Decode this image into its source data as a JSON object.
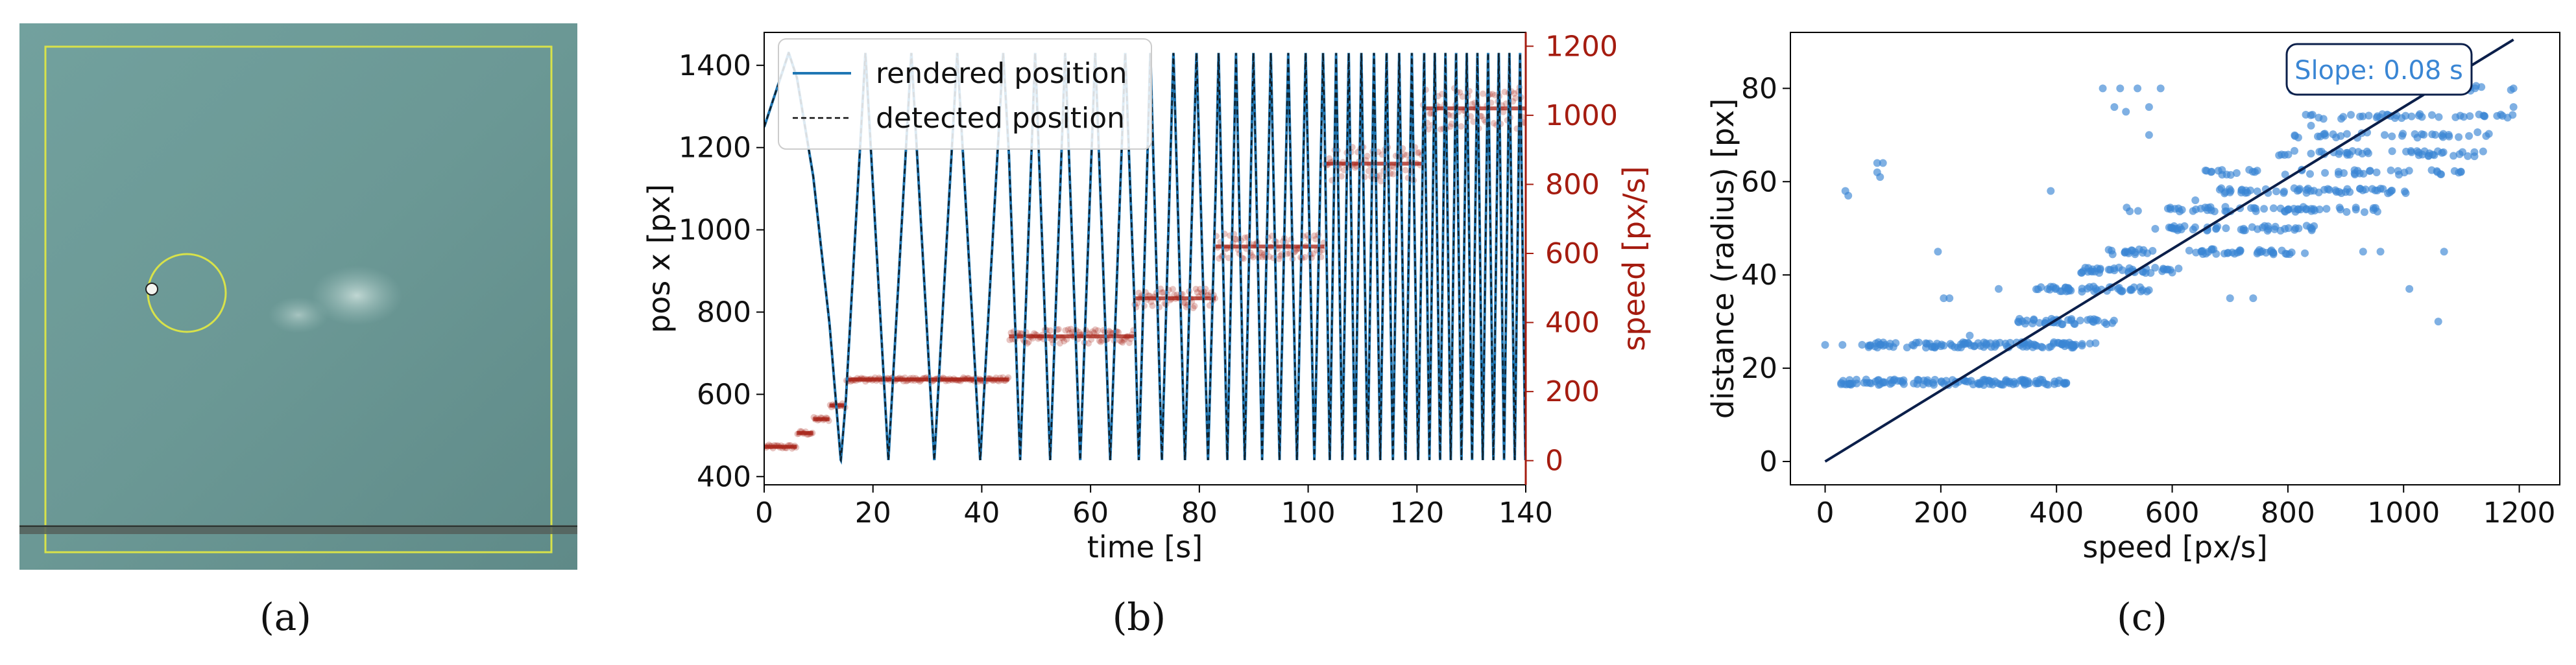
{
  "captions": {
    "a": "(a)",
    "b": "(b)",
    "c": "(c)"
  },
  "colors": {
    "frame_yellow": "#d8e24a",
    "water_bg": "#6d9a97",
    "rendered": "#1f77b4",
    "detected": "#111111",
    "speed": "#a51c10",
    "scatter": "#3a86d4",
    "fit": "#0b1f4a"
  },
  "chart_data": [
    {
      "type": "image",
      "description_label": "(a)",
      "elements": [
        "camera-frame",
        "tracking-circle",
        "marker",
        "ruler"
      ]
    },
    {
      "type": "line",
      "xlabel": "time [s]",
      "ylabel": "pos x [px]",
      "y2label": "speed [px/s]",
      "xlim": [
        0,
        140
      ],
      "ylim": [
        380,
        1480
      ],
      "y2lim": [
        -70,
        1240
      ],
      "xticks": [
        0,
        20,
        40,
        60,
        80,
        100,
        120,
        140
      ],
      "yticks": [
        400,
        600,
        800,
        1000,
        1200,
        1400
      ],
      "y2ticks": [
        0,
        200,
        400,
        600,
        800,
        1000,
        1200
      ],
      "legend": {
        "location": "top-left",
        "entries": [
          "rendered position",
          "detected position"
        ]
      },
      "position_min": 440,
      "position_max": 1430,
      "position_start": 1250,
      "speed_steps": [
        {
          "t0": 0,
          "t1": 6,
          "speed": 40
        },
        {
          "t0": 6,
          "t1": 9,
          "speed": 80
        },
        {
          "t0": 9,
          "t1": 12,
          "speed": 120
        },
        {
          "t0": 12,
          "t1": 15,
          "speed": 160
        },
        {
          "t0": 15,
          "t1": 45,
          "speed": 235
        },
        {
          "t0": 45,
          "t1": 68,
          "speed": 360
        },
        {
          "t0": 68,
          "t1": 83,
          "speed": 470
        },
        {
          "t0": 83,
          "t1": 103,
          "speed": 620
        },
        {
          "t0": 103,
          "t1": 121,
          "speed": 860
        },
        {
          "t0": 121,
          "t1": 140,
          "speed": 1020
        }
      ],
      "series": [
        {
          "name": "rendered position",
          "style": "solid"
        },
        {
          "name": "detected position",
          "style": "dashed"
        },
        {
          "name": "",
          "style": "scatter",
          "axis": "right"
        }
      ]
    },
    {
      "type": "scatter",
      "xlabel": "speed [px/s]",
      "ylabel": "distance (radius) [px]",
      "xlim": [
        -60,
        1270
      ],
      "ylim": [
        -5,
        92
      ],
      "xticks": [
        0,
        200,
        400,
        600,
        800,
        1000,
        1200
      ],
      "yticks": [
        0,
        20,
        40,
        60,
        80
      ],
      "annotation": "Slope: 0.08 s",
      "fit": {
        "slope": 0.076,
        "intercept": 0,
        "x0": 0,
        "x1": 1190
      },
      "clusters": [
        {
          "y": 17,
          "x0": 20,
          "x1": 420,
          "n": 120
        },
        {
          "y": 25,
          "x0": 60,
          "x1": 470,
          "n": 110
        },
        {
          "y": 30,
          "x0": 330,
          "x1": 500,
          "n": 40
        },
        {
          "y": 37,
          "x0": 360,
          "x1": 560,
          "n": 45
        },
        {
          "y": 41,
          "x0": 440,
          "x1": 620,
          "n": 40
        },
        {
          "y": 45,
          "x0": 480,
          "x1": 830,
          "n": 55
        },
        {
          "y": 50,
          "x0": 570,
          "x1": 850,
          "n": 45
        },
        {
          "y": 54,
          "x0": 520,
          "x1": 960,
          "n": 60
        },
        {
          "y": 58,
          "x0": 680,
          "x1": 1010,
          "n": 55
        },
        {
          "y": 62,
          "x0": 640,
          "x1": 1100,
          "n": 45
        },
        {
          "y": 66,
          "x0": 760,
          "x1": 1140,
          "n": 45
        },
        {
          "y": 70,
          "x0": 800,
          "x1": 1150,
          "n": 35
        },
        {
          "y": 74,
          "x0": 820,
          "x1": 1190,
          "n": 40
        },
        {
          "y": 80,
          "x0": 780,
          "x1": 1190,
          "n": 40
        }
      ],
      "outliers": [
        [
          0,
          25
        ],
        [
          30,
          25
        ],
        [
          35,
          58
        ],
        [
          40,
          57
        ],
        [
          90,
          64
        ],
        [
          90,
          62
        ],
        [
          100,
          64
        ],
        [
          95,
          61
        ],
        [
          195,
          45
        ],
        [
          215,
          35
        ],
        [
          205,
          35
        ],
        [
          250,
          27
        ],
        [
          300,
          37
        ],
        [
          390,
          58
        ],
        [
          480,
          80
        ],
        [
          510,
          80
        ],
        [
          540,
          80
        ],
        [
          580,
          80
        ],
        [
          500,
          76
        ],
        [
          520,
          75
        ],
        [
          560,
          76
        ],
        [
          560,
          70
        ],
        [
          640,
          56
        ],
        [
          700,
          35
        ],
        [
          740,
          35
        ],
        [
          840,
          72
        ],
        [
          930,
          45
        ],
        [
          960,
          45
        ],
        [
          1010,
          37
        ],
        [
          1070,
          45
        ],
        [
          1060,
          30
        ],
        [
          1140,
          74
        ],
        [
          1190,
          76
        ],
        [
          1190,
          80
        ]
      ]
    }
  ]
}
